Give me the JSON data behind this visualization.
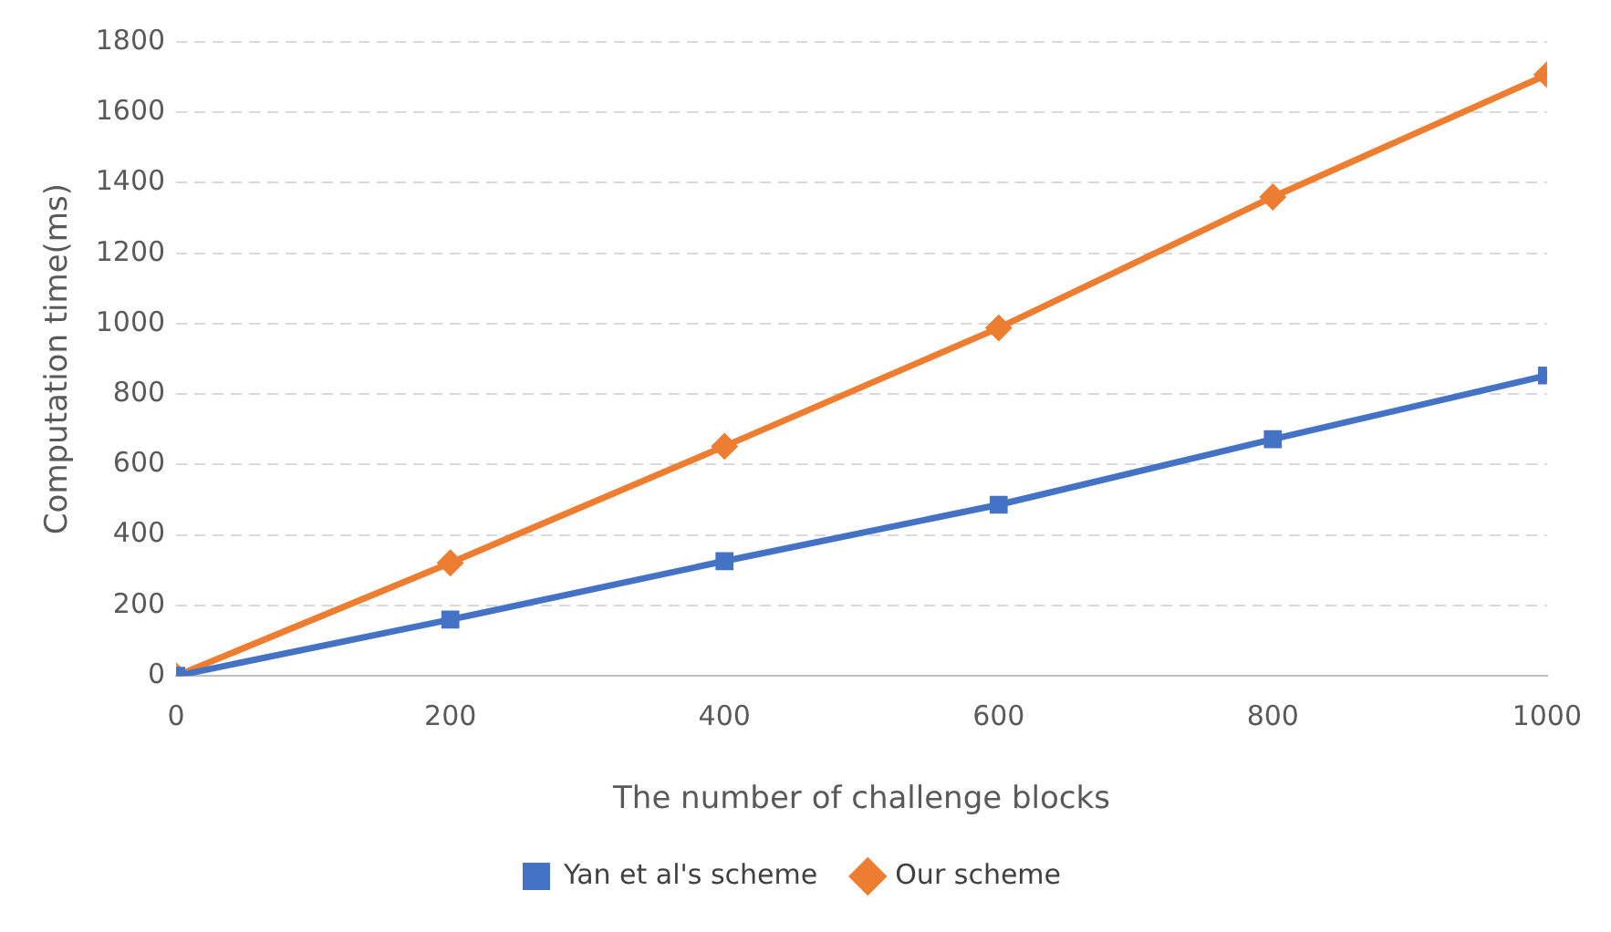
{
  "chart_data": {
    "type": "line",
    "xlabel": "The number of challenge blocks",
    "ylabel": "Computation time(ms)",
    "x": [
      0,
      200,
      400,
      600,
      800,
      1000
    ],
    "series": [
      {
        "name": "Yan et al's scheme",
        "color": "#4472c4",
        "marker": "square",
        "values": [
          0,
          160,
          326,
          486,
          672,
          853
        ]
      },
      {
        "name": "Our scheme",
        "color": "#ed7d31",
        "marker": "diamond",
        "values": [
          0,
          321,
          652,
          988,
          1360,
          1707
        ]
      }
    ],
    "xlim": [
      0,
      1000
    ],
    "xticks": [
      0,
      200,
      400,
      600,
      800,
      1000
    ],
    "ylim": [
      0,
      1800
    ],
    "yticks": [
      0,
      200,
      400,
      600,
      800,
      1000,
      1200,
      1400,
      1600,
      1800
    ],
    "grid": "y",
    "legend": "bottom",
    "line_style": "solid"
  }
}
